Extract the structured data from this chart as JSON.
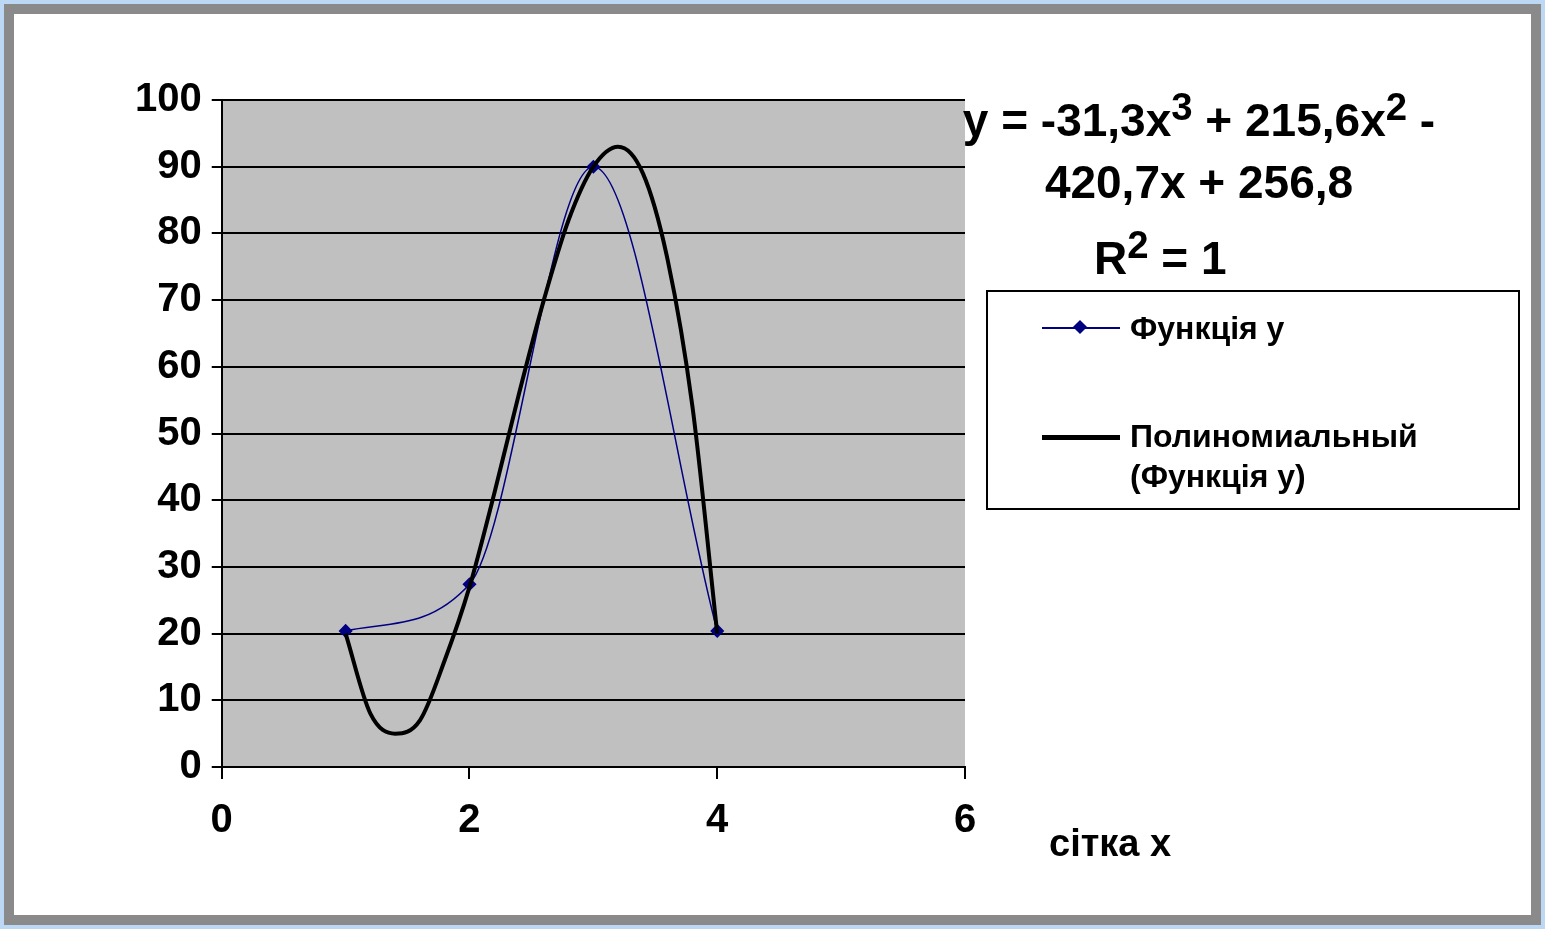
{
  "chart_data": {
    "type": "line",
    "xlabel": "сітка x",
    "xlim": [
      0,
      6
    ],
    "xticks": [
      0,
      2,
      4,
      6
    ],
    "ylim": [
      0,
      100
    ],
    "yticks": [
      0,
      10,
      20,
      30,
      40,
      50,
      60,
      70,
      80,
      90,
      100
    ],
    "grid": "y",
    "legend": "right",
    "annotations": [
      "y = -31,3x$^{3}$ + 215,6x$^{2}$ - 420,7x + 256,8",
      "R$^{2}$ = 1"
    ],
    "series": [
      {
        "name": "Функція y",
        "color": "#000080",
        "marker": "diamond",
        "x": [
          1,
          2,
          3,
          4
        ],
        "values": [
          20.4,
          27.4,
          90,
          20.4
        ]
      },
      {
        "name": "Полиномиальный (Функція y)",
        "type": "line",
        "color": "#000000",
        "marker": "none",
        "x": [
          1,
          1.2,
          1.4,
          1.6,
          1.8,
          2,
          2.2,
          2.4,
          2.6,
          2.8,
          3,
          3.2,
          3.4,
          3.6,
          3.8,
          4
        ],
        "values": [
          20,
          8,
          5,
          7,
          16,
          27,
          41,
          56,
          70,
          82,
          90,
          93,
          89,
          76,
          54,
          20
        ]
      }
    ]
  }
}
